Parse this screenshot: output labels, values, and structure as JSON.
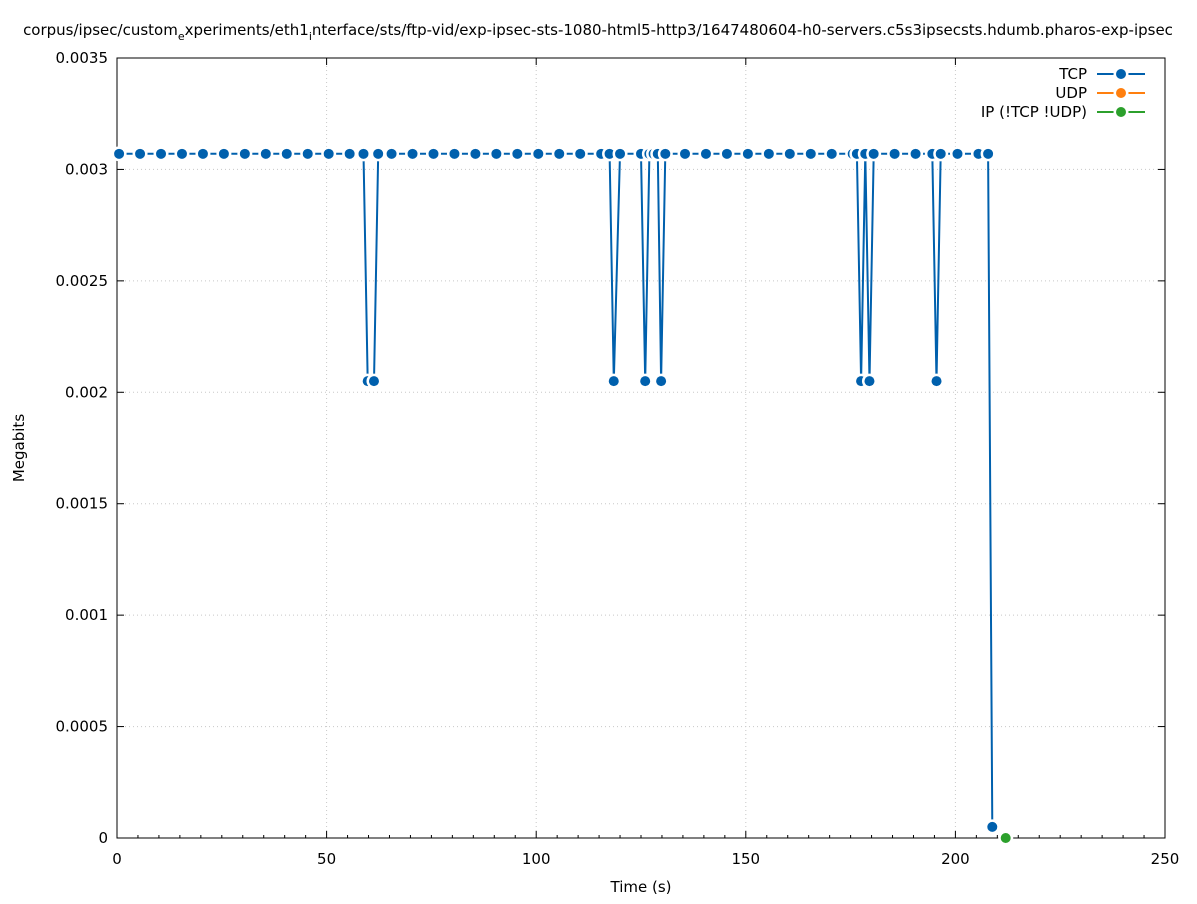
{
  "chart_data": {
    "type": "line",
    "title": "corpus/ipsec/custom_experiments/eth1_interface/sts/ftp-vid/exp-ipsec-sts-1080-html5-http3/1647480604-h0-servers.c5s3ipsecsts.hdumb.pharos-exp-ipsec",
    "title_display": {
      "prefix": "corpus/ipsec/custom",
      "sub1": "e",
      "mid": "xperiments/eth1",
      "sub2": "i",
      "rest": "nterface/sts/ftp-vid/exp-ipsec-sts-1080-html5-http3/1647480604-h0-servers.c5s3ipsecsts.hdumb.pharos-exp-ipsec"
    },
    "xlabel": "Time (s)",
    "ylabel": "Megabits",
    "xlim": [
      0,
      250
    ],
    "ylim": [
      0,
      0.0035
    ],
    "x_ticks": [
      0,
      50,
      100,
      150,
      200,
      250
    ],
    "y_ticks": [
      0,
      0.0005,
      0.001,
      0.0015,
      0.002,
      0.0025,
      0.003,
      0.0035
    ],
    "x_tick_labels": [
      "0",
      "50",
      "100",
      "150",
      "200",
      "250"
    ],
    "y_tick_labels": [
      "0",
      "0.0005",
      "0.001",
      "0.0015",
      "0.002",
      "0.0025",
      "0.003",
      "0.0035"
    ],
    "grid": true,
    "legend_position": "top-right",
    "series": [
      {
        "name": "TCP",
        "color": "#0060ad",
        "x": [
          0.5,
          5.5,
          10.5,
          15.5,
          20.5,
          25.5,
          30.5,
          35.5,
          40.5,
          45.5,
          50.5,
          55.5,
          58.8,
          59.8,
          61.3,
          62.3,
          65.5,
          70.5,
          75.5,
          80.5,
          85.5,
          90.5,
          95.5,
          100.5,
          105.5,
          110.5,
          115.5,
          117.5,
          118.5,
          120.0,
          125.0,
          126.0,
          127.0,
          128.0,
          129.0,
          129.8,
          130.8,
          135.5,
          140.5,
          145.5,
          150.5,
          155.5,
          160.5,
          165.5,
          170.5,
          175.5,
          176.5,
          177.5,
          178.5,
          179.5,
          180.5,
          185.5,
          190.5,
          194.5,
          195.5,
          196.5,
          200.5,
          205.5,
          207.8,
          208.8
        ],
        "y": [
          0.00307,
          0.00307,
          0.00307,
          0.00307,
          0.00307,
          0.00307,
          0.00307,
          0.00307,
          0.00307,
          0.00307,
          0.00307,
          0.00307,
          0.00307,
          0.00205,
          0.00205,
          0.00307,
          0.00307,
          0.00307,
          0.00307,
          0.00307,
          0.00307,
          0.00307,
          0.00307,
          0.00307,
          0.00307,
          0.00307,
          0.00307,
          0.00307,
          0.00205,
          0.00307,
          0.00307,
          0.00205,
          0.00307,
          0.00307,
          0.00307,
          0.00205,
          0.00307,
          0.00307,
          0.00307,
          0.00307,
          0.00307,
          0.00307,
          0.00307,
          0.00307,
          0.00307,
          0.00307,
          0.00307,
          0.00205,
          0.00307,
          0.00205,
          0.00307,
          0.00307,
          0.00307,
          0.00307,
          0.00205,
          0.00307,
          0.00307,
          0.00307,
          0.00307,
          5e-05
        ]
      },
      {
        "name": "UDP",
        "color": "#ff7f0e",
        "x": [],
        "y": []
      },
      {
        "name": "IP (!TCP  !UDP)",
        "color": "#2ca02c",
        "x": [
          212.0
        ],
        "y": [
          0
        ]
      }
    ]
  }
}
